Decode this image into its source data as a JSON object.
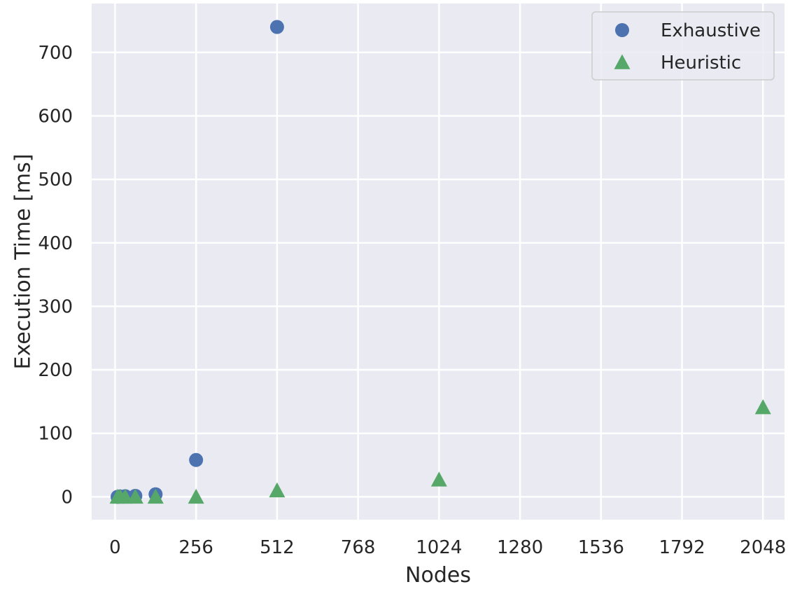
{
  "chart_data": {
    "type": "scatter",
    "title": "",
    "xlabel": "Nodes",
    "ylabel": "Execution Time [ms]",
    "xlim": [
      -74,
      2116
    ],
    "ylim": [
      -36,
      777
    ],
    "xticks": [
      0,
      256,
      512,
      768,
      1024,
      1280,
      1536,
      1792,
      2048
    ],
    "yticks": [
      0,
      100,
      200,
      300,
      400,
      500,
      600,
      700
    ],
    "grid": true,
    "legend_position": "top-right",
    "colors": {
      "background": "#eaeaf2",
      "grid": "#ffffff",
      "exhaustive": "#4c72b0",
      "heuristic": "#55a868",
      "text": "#262626",
      "legend_border": "#cccccc"
    },
    "series": [
      {
        "name": "Exhaustive",
        "marker": "circle",
        "points": [
          {
            "x": 8,
            "y": 0
          },
          {
            "x": 16,
            "y": 0.5
          },
          {
            "x": 32,
            "y": 1
          },
          {
            "x": 64,
            "y": 1.5
          },
          {
            "x": 128,
            "y": 4
          },
          {
            "x": 256,
            "y": 58
          },
          {
            "x": 512,
            "y": 740
          }
        ]
      },
      {
        "name": "Heuristic",
        "marker": "triangle",
        "points": [
          {
            "x": 8,
            "y": 0
          },
          {
            "x": 16,
            "y": 0
          },
          {
            "x": 32,
            "y": 0
          },
          {
            "x": 64,
            "y": 0
          },
          {
            "x": 128,
            "y": 0
          },
          {
            "x": 256,
            "y": 0
          },
          {
            "x": 512,
            "y": 10
          },
          {
            "x": 1024,
            "y": 27
          },
          {
            "x": 2048,
            "y": 141
          }
        ]
      }
    ]
  }
}
